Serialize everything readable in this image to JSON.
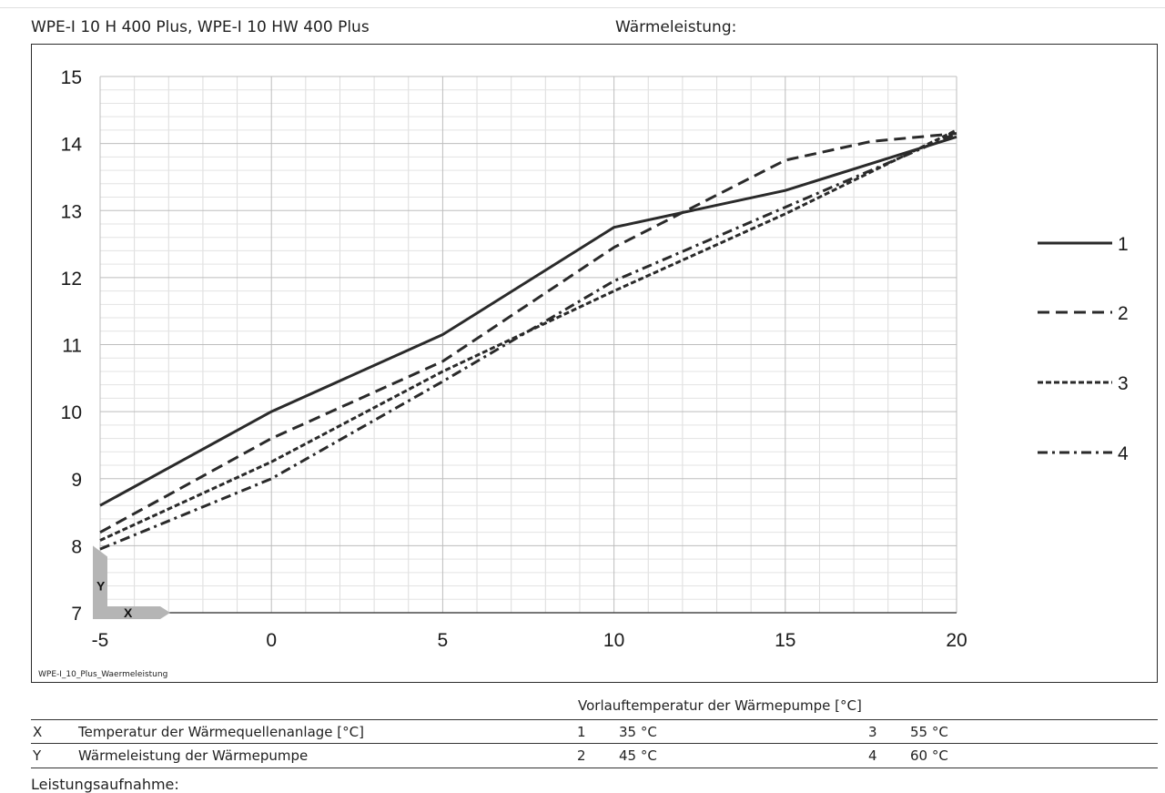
{
  "header": {
    "model": "WPE-I 10 H 400 Plus, WPE-I 10 HW 400 Plus",
    "title": "Wärmeleistung:"
  },
  "chart_data": {
    "type": "line",
    "title": "Wärmeleistung:",
    "xlabel": "X",
    "ylabel": "Y",
    "xlim": [
      -5,
      20
    ],
    "ylim": [
      7,
      15
    ],
    "x_ticks": [
      "-5",
      "0",
      "5",
      "10",
      "15",
      "20"
    ],
    "y_ticks": [
      "7",
      "8",
      "9",
      "10",
      "11",
      "12",
      "13",
      "14",
      "15"
    ],
    "grid": true,
    "legend_position": "right",
    "series": [
      {
        "name": "1",
        "style": "solid",
        "x": [
          -5,
          0,
          5,
          10,
          15,
          20
        ],
        "y": [
          8.6,
          10.0,
          11.15,
          12.75,
          13.3,
          14.1
        ]
      },
      {
        "name": "2",
        "style": "dashed",
        "x": [
          -5,
          0,
          5,
          10,
          15,
          17.5,
          20
        ],
        "y": [
          8.2,
          9.6,
          10.75,
          12.45,
          13.75,
          14.03,
          14.15
        ]
      },
      {
        "name": "3",
        "style": "dotted",
        "x": [
          -5,
          0,
          5,
          10,
          15,
          20
        ],
        "y": [
          8.08,
          9.25,
          10.6,
          11.8,
          12.95,
          14.2
        ]
      },
      {
        "name": "4",
        "style": "dashdot",
        "x": [
          -5,
          0,
          5,
          10,
          15,
          20
        ],
        "y": [
          7.95,
          9.0,
          10.45,
          11.95,
          13.05,
          14.15
        ]
      }
    ],
    "source_label": "WPE-I_10_Plus_Waermeleistung"
  },
  "table": {
    "caption": "Vorlauftemperatur der Wärmepumpe [°C]",
    "rows": [
      {
        "key": "X",
        "desc": "Temperatur der Wärmequellenanlage [°C]",
        "n1": "1",
        "v1": "35 °C",
        "n2": "3",
        "v2": "55 °C"
      },
      {
        "key": "Y",
        "desc": "Wärmeleistung der Wärmepumpe",
        "n1": "2",
        "v1": "45 °C",
        "n2": "4",
        "v2": "60 °C"
      }
    ]
  },
  "footer": {
    "text": "Leistungsaufnahme:"
  }
}
